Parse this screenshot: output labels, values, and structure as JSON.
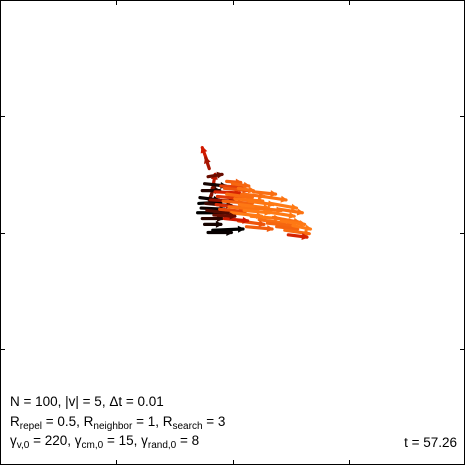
{
  "chart_data": {
    "type": "scatter",
    "title": "",
    "xlabel": "",
    "ylabel": "",
    "xlim": [
      0,
      4
    ],
    "ylim": [
      0,
      4
    ],
    "xticks": [
      1,
      2,
      3
    ],
    "yticks": [
      1,
      2,
      3
    ],
    "tick_labels_shown": false,
    "grid": false,
    "color_scale": [
      "#000000",
      "#d11a00",
      "#ff7a14"
    ],
    "params_text": {
      "line1": "N = 100, |v| = 5, Δt = 0.01",
      "line2_parts": [
        "R",
        "repel",
        " = 0.5, R",
        "neighbor",
        " = 1, R",
        "search",
        " = 3"
      ],
      "line3_parts": [
        "γ",
        "v,0",
        " = 220, γ",
        "cm,0",
        " = 15, γ",
        "rand,0",
        " = 8"
      ]
    },
    "time_label": "t = 57.26",
    "agents": [
      {
        "x": 1.82,
        "y": 2.32,
        "dx": 0.03,
        "dy": 0.18,
        "c": 0.45
      },
      {
        "x": 1.8,
        "y": 2.28,
        "dx": 0.05,
        "dy": 0.13,
        "c": 0.3
      },
      {
        "x": 1.78,
        "y": 2.62,
        "dx": -0.04,
        "dy": 0.11,
        "c": 0.5
      },
      {
        "x": 1.8,
        "y": 2.55,
        "dx": -0.03,
        "dy": 0.09,
        "c": 0.4
      },
      {
        "x": 1.79,
        "y": 2.48,
        "dx": 0.12,
        "dy": 0.02,
        "c": 0.25
      },
      {
        "x": 1.76,
        "y": 2.42,
        "dx": 0.18,
        "dy": -0.02,
        "c": 0.05
      },
      {
        "x": 1.74,
        "y": 2.36,
        "dx": 0.15,
        "dy": 0.0,
        "c": 0.08
      },
      {
        "x": 1.72,
        "y": 2.3,
        "dx": 0.16,
        "dy": -0.02,
        "c": 0.02
      },
      {
        "x": 1.71,
        "y": 2.25,
        "dx": 0.19,
        "dy": 0.01,
        "c": 0.0
      },
      {
        "x": 1.73,
        "y": 2.21,
        "dx": 0.2,
        "dy": -0.01,
        "c": 0.03
      },
      {
        "x": 1.7,
        "y": 2.17,
        "dx": 0.22,
        "dy": 0.0,
        "c": 0.0
      },
      {
        "x": 1.74,
        "y": 2.12,
        "dx": 0.17,
        "dy": 0.0,
        "c": 0.1
      },
      {
        "x": 1.76,
        "y": 2.07,
        "dx": 0.14,
        "dy": 0.0,
        "c": 0.05
      },
      {
        "x": 1.83,
        "y": 2.02,
        "dx": 0.26,
        "dy": 0.01,
        "c": 0.0
      },
      {
        "x": 1.79,
        "y": 2.0,
        "dx": 0.2,
        "dy": 0.0,
        "c": 0.02
      },
      {
        "x": 1.77,
        "y": 2.25,
        "dx": 0.22,
        "dy": -0.02,
        "c": 0.15
      },
      {
        "x": 1.78,
        "y": 2.19,
        "dx": 0.24,
        "dy": -0.03,
        "c": 0.2
      },
      {
        "x": 1.81,
        "y": 2.28,
        "dx": 0.2,
        "dy": -0.01,
        "c": 0.35
      },
      {
        "x": 1.85,
        "y": 2.35,
        "dx": 0.21,
        "dy": -0.01,
        "c": 0.55
      },
      {
        "x": 1.87,
        "y": 2.31,
        "dx": 0.22,
        "dy": -0.02,
        "c": 0.65
      },
      {
        "x": 1.9,
        "y": 2.4,
        "dx": 0.18,
        "dy": -0.01,
        "c": 0.7
      },
      {
        "x": 1.93,
        "y": 2.38,
        "dx": 0.2,
        "dy": -0.02,
        "c": 0.8
      },
      {
        "x": 1.95,
        "y": 2.44,
        "dx": 0.12,
        "dy": -0.01,
        "c": 0.85
      },
      {
        "x": 2.0,
        "y": 2.42,
        "dx": 0.14,
        "dy": -0.02,
        "c": 0.9
      },
      {
        "x": 2.05,
        "y": 2.38,
        "dx": 0.13,
        "dy": -0.02,
        "c": 0.95
      },
      {
        "x": 1.86,
        "y": 2.24,
        "dx": 0.24,
        "dy": -0.03,
        "c": 0.6
      },
      {
        "x": 1.89,
        "y": 2.2,
        "dx": 0.22,
        "dy": -0.02,
        "c": 0.75
      },
      {
        "x": 1.92,
        "y": 2.27,
        "dx": 0.25,
        "dy": -0.02,
        "c": 0.88
      },
      {
        "x": 1.95,
        "y": 2.33,
        "dx": 0.22,
        "dy": -0.03,
        "c": 0.92
      },
      {
        "x": 1.97,
        "y": 2.22,
        "dx": 0.25,
        "dy": -0.02,
        "c": 0.96
      },
      {
        "x": 1.99,
        "y": 2.17,
        "dx": 0.26,
        "dy": -0.03,
        "c": 1.0
      },
      {
        "x": 2.02,
        "y": 2.29,
        "dx": 0.24,
        "dy": -0.02,
        "c": 0.97
      },
      {
        "x": 2.06,
        "y": 2.24,
        "dx": 0.25,
        "dy": -0.03,
        "c": 0.99
      },
      {
        "x": 2.08,
        "y": 2.33,
        "dx": 0.19,
        "dy": -0.02,
        "c": 0.93
      },
      {
        "x": 2.1,
        "y": 2.19,
        "dx": 0.22,
        "dy": -0.02,
        "c": 1.0
      },
      {
        "x": 2.14,
        "y": 2.27,
        "dx": 0.21,
        "dy": -0.03,
        "c": 0.98
      },
      {
        "x": 2.16,
        "y": 2.14,
        "dx": 0.24,
        "dy": -0.02,
        "c": 1.0
      },
      {
        "x": 2.2,
        "y": 2.21,
        "dx": 0.22,
        "dy": -0.02,
        "c": 0.96
      },
      {
        "x": 2.23,
        "y": 2.11,
        "dx": 0.22,
        "dy": -0.03,
        "c": 0.94
      },
      {
        "x": 2.28,
        "y": 2.18,
        "dx": 0.25,
        "dy": -0.04,
        "c": 1.0
      },
      {
        "x": 2.3,
        "y": 2.08,
        "dx": 0.21,
        "dy": -0.02,
        "c": 0.9
      },
      {
        "x": 2.35,
        "y": 2.13,
        "dx": 0.22,
        "dy": -0.04,
        "c": 0.95
      },
      {
        "x": 2.38,
        "y": 2.05,
        "dx": 0.18,
        "dy": -0.02,
        "c": 0.88
      },
      {
        "x": 2.42,
        "y": 2.1,
        "dx": 0.2,
        "dy": -0.03,
        "c": 0.99
      },
      {
        "x": 2.45,
        "y": 2.02,
        "dx": 0.21,
        "dy": -0.03,
        "c": 0.92
      },
      {
        "x": 2.48,
        "y": 1.98,
        "dx": 0.16,
        "dy": -0.02,
        "c": 0.55
      },
      {
        "x": 2.52,
        "y": 2.06,
        "dx": 0.15,
        "dy": -0.03,
        "c": 1.0
      },
      {
        "x": 2.18,
        "y": 2.35,
        "dx": 0.19,
        "dy": -0.02,
        "c": 0.94
      },
      {
        "x": 2.26,
        "y": 2.31,
        "dx": 0.2,
        "dy": -0.03,
        "c": 0.97
      },
      {
        "x": 2.33,
        "y": 2.25,
        "dx": 0.22,
        "dy": -0.04,
        "c": 1.0
      },
      {
        "x": 2.4,
        "y": 2.2,
        "dx": 0.2,
        "dy": -0.03,
        "c": 0.96
      },
      {
        "x": 2.12,
        "y": 2.05,
        "dx": 0.22,
        "dy": -0.02,
        "c": 0.85
      },
      {
        "x": 2.05,
        "y": 2.1,
        "dx": 0.22,
        "dy": -0.03,
        "c": 0.8
      },
      {
        "x": 1.93,
        "y": 2.12,
        "dx": 0.2,
        "dy": -0.02,
        "c": 0.5
      },
      {
        "x": 1.84,
        "y": 2.15,
        "dx": 0.18,
        "dy": -0.01,
        "c": 0.25
      }
    ]
  }
}
